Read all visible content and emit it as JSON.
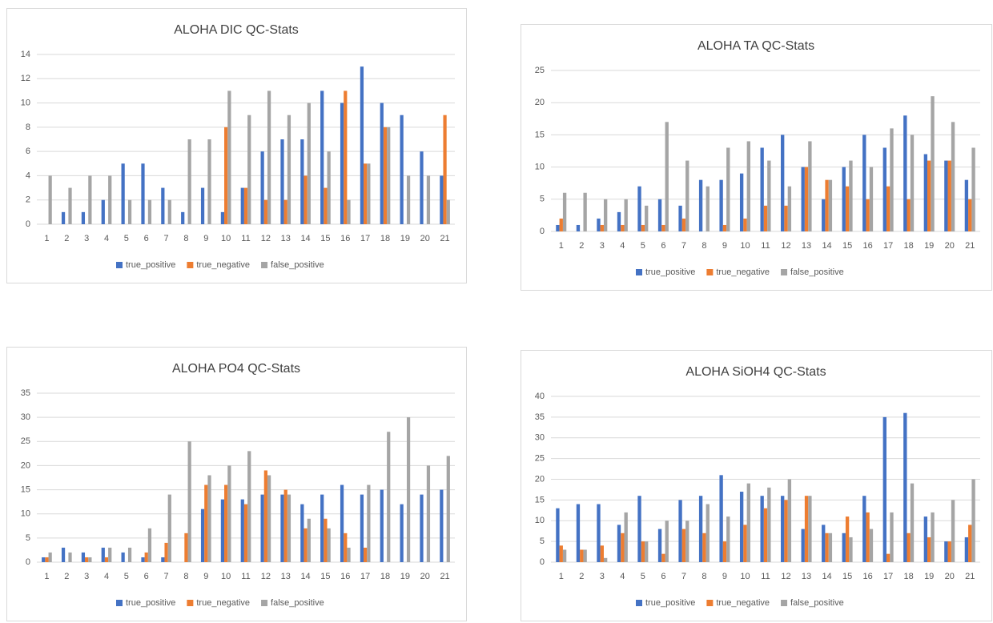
{
  "chart_data": [
    {
      "type": "bar",
      "title": "ALOHA DIC QC-Stats",
      "grid": true,
      "legend": "bottom",
      "categories": [
        "1",
        "2",
        "3",
        "4",
        "5",
        "6",
        "7",
        "8",
        "9",
        "10",
        "11",
        "12",
        "13",
        "14",
        "15",
        "16",
        "17",
        "18",
        "19",
        "20",
        "21"
      ],
      "ylim": [
        0,
        14
      ],
      "yticks": [
        0,
        2,
        4,
        6,
        8,
        10,
        12,
        14
      ],
      "series": [
        {
          "name": "true_positive",
          "color": "#4472c4",
          "values": [
            0,
            1,
            1,
            2,
            5,
            5,
            3,
            1,
            3,
            1,
            3,
            6,
            7,
            7,
            11,
            10,
            13,
            10,
            9,
            6,
            4
          ]
        },
        {
          "name": "true_negative",
          "color": "#ed7d31",
          "values": [
            0,
            0,
            0,
            0,
            0,
            0,
            0,
            0,
            0,
            8,
            3,
            2,
            2,
            4,
            3,
            11,
            5,
            8,
            0,
            0,
            9
          ]
        },
        {
          "name": "false_positive",
          "color": "#a5a5a5",
          "values": [
            4,
            3,
            4,
            4,
            2,
            2,
            2,
            7,
            7,
            11,
            9,
            11,
            9,
            10,
            6,
            2,
            5,
            8,
            4,
            4,
            2
          ]
        }
      ]
    },
    {
      "type": "bar",
      "title": "ALOHA TA QC-Stats",
      "grid": true,
      "legend": "bottom",
      "categories": [
        "1",
        "2",
        "3",
        "4",
        "5",
        "6",
        "7",
        "8",
        "9",
        "10",
        "11",
        "12",
        "13",
        "14",
        "15",
        "16",
        "17",
        "18",
        "19",
        "20",
        "21"
      ],
      "ylim": [
        0,
        25
      ],
      "yticks": [
        0,
        5,
        10,
        15,
        20,
        25
      ],
      "series": [
        {
          "name": "true_positive",
          "color": "#4472c4",
          "values": [
            1,
            1,
            2,
            3,
            7,
            5,
            4,
            8,
            8,
            9,
            13,
            15,
            10,
            5,
            10,
            15,
            13,
            18,
            12,
            11,
            8
          ]
        },
        {
          "name": "true_negative",
          "color": "#ed7d31",
          "values": [
            2,
            0,
            1,
            1,
            1,
            1,
            2,
            0,
            1,
            2,
            4,
            4,
            10,
            8,
            7,
            5,
            7,
            5,
            11,
            11,
            5
          ]
        },
        {
          "name": "false_positive",
          "color": "#a5a5a5",
          "values": [
            6,
            6,
            5,
            5,
            4,
            17,
            11,
            7,
            13,
            14,
            11,
            7,
            14,
            8,
            11,
            10,
            16,
            15,
            21,
            17,
            13
          ]
        }
      ]
    },
    {
      "type": "bar",
      "title": "ALOHA PO4 QC-Stats",
      "grid": true,
      "legend": "bottom",
      "categories": [
        "1",
        "2",
        "3",
        "4",
        "5",
        "6",
        "7",
        "8",
        "9",
        "10",
        "11",
        "12",
        "13",
        "14",
        "15",
        "16",
        "17",
        "18",
        "19",
        "20",
        "21"
      ],
      "ylim": [
        0,
        35
      ],
      "yticks": [
        0,
        5,
        10,
        15,
        20,
        25,
        30,
        35
      ],
      "series": [
        {
          "name": "true_positive",
          "color": "#4472c4",
          "values": [
            1,
            3,
            2,
            3,
            2,
            1,
            1,
            0,
            11,
            13,
            13,
            14,
            14,
            12,
            14,
            16,
            14,
            15,
            12,
            14,
            15
          ]
        },
        {
          "name": "true_negative",
          "color": "#ed7d31",
          "values": [
            1,
            0,
            1,
            1,
            0,
            2,
            4,
            6,
            16,
            16,
            12,
            19,
            15,
            7,
            9,
            6,
            3,
            0,
            0,
            0,
            0
          ]
        },
        {
          "name": "false_positive",
          "color": "#a5a5a5",
          "values": [
            2,
            2,
            1,
            3,
            3,
            7,
            14,
            25,
            18,
            20,
            23,
            18,
            14,
            9,
            7,
            3,
            16,
            27,
            30,
            20,
            22
          ]
        }
      ]
    },
    {
      "type": "bar",
      "title": "ALOHA SiOH4 QC-Stats",
      "grid": true,
      "legend": "bottom",
      "categories": [
        "1",
        "2",
        "3",
        "4",
        "5",
        "6",
        "7",
        "8",
        "9",
        "10",
        "11",
        "12",
        "13",
        "14",
        "15",
        "16",
        "17",
        "18",
        "19",
        "20",
        "21"
      ],
      "ylim": [
        0,
        40
      ],
      "yticks": [
        0,
        5,
        10,
        15,
        20,
        25,
        30,
        35,
        40
      ],
      "series": [
        {
          "name": "true_positive",
          "color": "#4472c4",
          "values": [
            13,
            14,
            14,
            9,
            16,
            8,
            15,
            16,
            21,
            17,
            16,
            16,
            8,
            9,
            7,
            16,
            35,
            36,
            11,
            5,
            6
          ]
        },
        {
          "name": "true_negative",
          "color": "#ed7d31",
          "values": [
            4,
            3,
            4,
            7,
            5,
            2,
            8,
            7,
            5,
            9,
            13,
            15,
            16,
            7,
            11,
            12,
            2,
            7,
            6,
            5,
            9
          ]
        },
        {
          "name": "false_positive",
          "color": "#a5a5a5",
          "values": [
            3,
            3,
            1,
            12,
            5,
            10,
            10,
            14,
            11,
            19,
            18,
            20,
            16,
            7,
            6,
            8,
            12,
            19,
            12,
            15,
            20
          ]
        }
      ]
    }
  ]
}
